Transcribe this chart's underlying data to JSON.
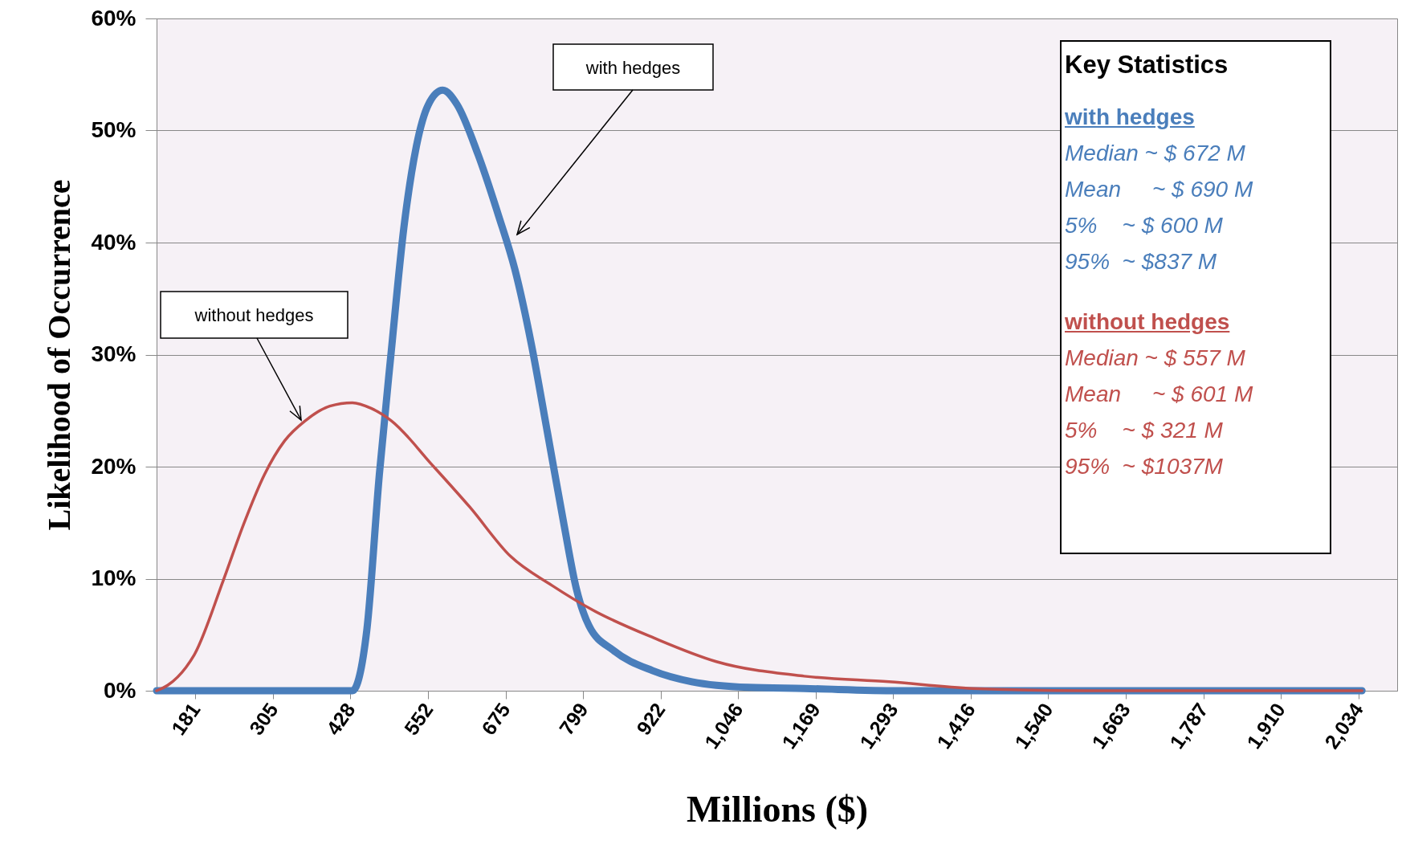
{
  "chart_data": {
    "type": "line",
    "xlabel": "Millions ($)",
    "ylabel": "Likelihood of Occurrence",
    "xlim": [
      119,
      2096
    ],
    "xticks": [
      181,
      305,
      428,
      552,
      675,
      799,
      922,
      {
        "value": 1046,
        "label": "1,046"
      },
      {
        "value": 1169,
        "label": "1,169"
      },
      {
        "value": 1293,
        "label": "1,293"
      },
      {
        "value": 1416,
        "label": "1,416"
      },
      {
        "value": 1540,
        "label": "1,540"
      },
      {
        "value": 1663,
        "label": "1,663"
      },
      {
        "value": 1787,
        "label": "1,787"
      },
      {
        "value": 1910,
        "label": "1,910"
      },
      {
        "value": 2034,
        "label": "2,034"
      }
    ],
    "ylim": [
      0,
      60
    ],
    "yticks": [
      {
        "value": 0,
        "label": "0%"
      },
      {
        "value": 10,
        "label": "10%"
      },
      {
        "value": 20,
        "label": "20%"
      },
      {
        "value": 30,
        "label": "30%"
      },
      {
        "value": 40,
        "label": "40%"
      },
      {
        "value": 50,
        "label": "50%"
      },
      {
        "value": 60,
        "label": "60%"
      }
    ],
    "grid": "y",
    "marker": "none",
    "line_style": "solid",
    "series": [
      {
        "name": "with hedges",
        "color": "#4a7ebb",
        "x": [
          119,
          431,
          454,
          474,
          493,
          513,
          533,
          552,
          575,
          598,
          631,
          664,
          690,
          716,
          742,
          768,
          788,
          808,
          847,
          909,
          972,
          1062,
          1151,
          1300,
          1600,
          2040
        ],
        "values": [
          0,
          0,
          5.4,
          19.3,
          30.3,
          41.3,
          48.6,
          52.3,
          53.6,
          52.3,
          47.9,
          42.4,
          37.6,
          31.0,
          23.0,
          14.9,
          9.1,
          5.8,
          3.6,
          1.8,
          0.8,
          0.3,
          0.2,
          0,
          0,
          0
        ]
      },
      {
        "name": "without hedges",
        "color": "#c0504d",
        "x": [
          119,
          137,
          166,
          179,
          225,
          258,
          291,
          323,
          356,
          395,
          431,
          461,
          493,
          559,
          618,
          683,
          749,
          814,
          912,
          1011,
          1151,
          1286,
          1420,
          1600,
          2040
        ],
        "values": [
          0,
          0.5,
          2.1,
          3.2,
          9.8,
          14.9,
          19.3,
          22.3,
          24.1,
          25.4,
          25.7,
          25.2,
          24.1,
          20.1,
          16.4,
          12.0,
          9.4,
          7.2,
          4.7,
          2.6,
          1.3,
          0.8,
          0.2,
          0,
          0
        ]
      }
    ],
    "annotations": [
      "Key Statistics",
      "with hedges",
      "Median ~ $ 672 M",
      "Mean     ~ $ 690 M",
      "5%    ~ $ 600 M",
      "95%  ~ $837 M",
      "without hedges",
      "Median ~ $ 557 M",
      "Mean     ~ $ 601 M",
      "5%    ~ $ 321 M",
      "95%  ~ $1037M"
    ]
  }
}
